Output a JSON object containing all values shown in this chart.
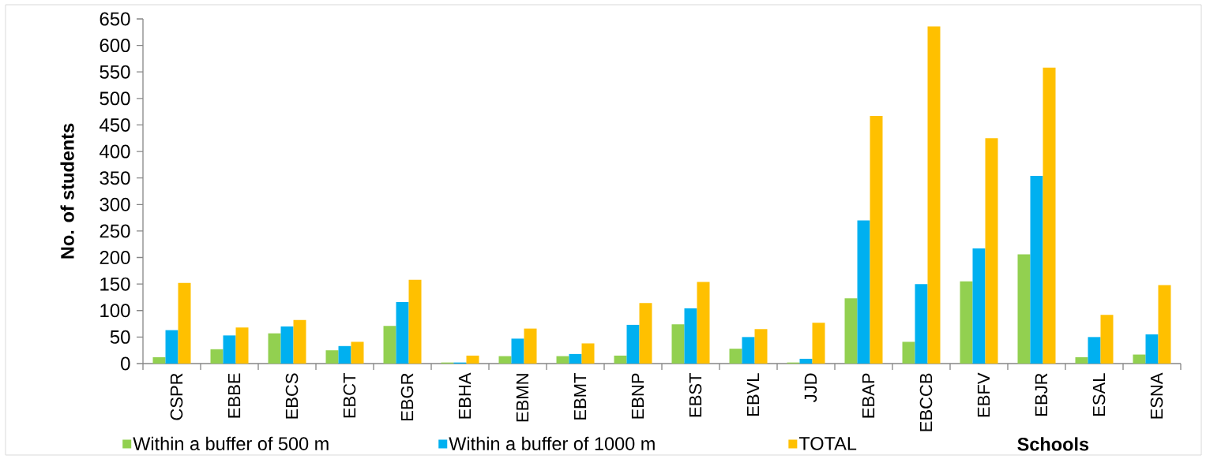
{
  "chart_data": {
    "type": "bar",
    "xlabel": "Schools",
    "ylabel": "No. of students",
    "categories": [
      "CSPR",
      "EBBE",
      "EBCS",
      "EBCT",
      "EBGR",
      "EBHA",
      "EBMN",
      "EBMT",
      "EBNP",
      "EBST",
      "EBVL",
      "JJD",
      "EBAP",
      "EBCCB",
      "EBFV",
      "EBJR",
      "ESAL",
      "ESNA"
    ],
    "series": [
      {
        "name": "Within a buffer of 500 m",
        "color": "#92d050",
        "values": [
          12,
          27,
          57,
          25,
          71,
          2,
          14,
          14,
          15,
          74,
          28,
          2,
          123,
          41,
          155,
          206,
          12,
          17
        ]
      },
      {
        "name": "Within a buffer of 1000 m",
        "color": "#00b0f0",
        "values": [
          63,
          53,
          70,
          33,
          116,
          2,
          47,
          18,
          73,
          104,
          50,
          9,
          270,
          150,
          217,
          354,
          50,
          55
        ]
      },
      {
        "name": "TOTAL",
        "color": "#ffc000",
        "values": [
          152,
          68,
          82,
          41,
          158,
          15,
          66,
          38,
          114,
          154,
          65,
          77,
          467,
          636,
          425,
          558,
          92,
          148
        ]
      }
    ],
    "ylim": [
      0,
      650
    ],
    "yticks": [
      0,
      50,
      100,
      150,
      200,
      250,
      300,
      350,
      400,
      450,
      500,
      550,
      600,
      650
    ],
    "grid": false,
    "legend": "bottom"
  }
}
